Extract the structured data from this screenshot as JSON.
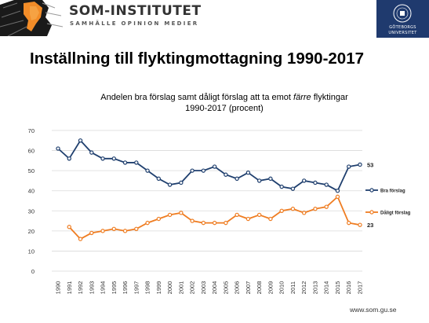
{
  "header": {
    "brand": "SOM-INSTITUTET",
    "tagline": "SAMHÄLLE OPINION MEDIER",
    "seal_line1": "GÖTEBORGS",
    "seal_line2": "UNIVERSITET"
  },
  "page_title": "Inställning till flyktingmottagning 1990-2017",
  "footer_url": "www.som.gu.se",
  "chart_data": {
    "type": "line",
    "title_pre": "Andelen bra förslag samt dåligt förslag att ta emot ",
    "title_em": "färre",
    "title_post": " flyktingar",
    "subtitle": "1990-2017 (procent)",
    "ylim": [
      0,
      70
    ],
    "yticks": [
      0,
      10,
      20,
      30,
      40,
      50,
      60,
      70
    ],
    "grid": true,
    "legend": "right",
    "x": [
      "1990",
      "1991",
      "1992",
      "1993",
      "1994",
      "1995",
      "1996",
      "1997",
      "1998",
      "1999",
      "2000",
      "2001",
      "2002",
      "2003",
      "2004",
      "2005",
      "2006",
      "2007",
      "2008",
      "2009",
      "2010",
      "2011",
      "2012",
      "2013",
      "2014",
      "2015",
      "2016",
      "2017"
    ],
    "series": [
      {
        "name": "Bra förslag",
        "color": "#1f3f6e",
        "values": [
          61,
          56,
          65,
          59,
          56,
          56,
          54,
          54,
          50,
          46,
          43,
          44,
          50,
          50,
          52,
          48,
          46,
          49,
          45,
          46,
          42,
          41,
          45,
          44,
          43,
          40,
          52,
          53
        ],
        "end_label": "53"
      },
      {
        "name": "Dåligt förslag",
        "color": "#ef7d22",
        "values": [
          null,
          22,
          16,
          19,
          20,
          21,
          20,
          21,
          24,
          26,
          28,
          29,
          25,
          24,
          24,
          24,
          28,
          26,
          28,
          26,
          30,
          31,
          29,
          31,
          32,
          37,
          24,
          23
        ],
        "end_label": "23"
      }
    ]
  }
}
